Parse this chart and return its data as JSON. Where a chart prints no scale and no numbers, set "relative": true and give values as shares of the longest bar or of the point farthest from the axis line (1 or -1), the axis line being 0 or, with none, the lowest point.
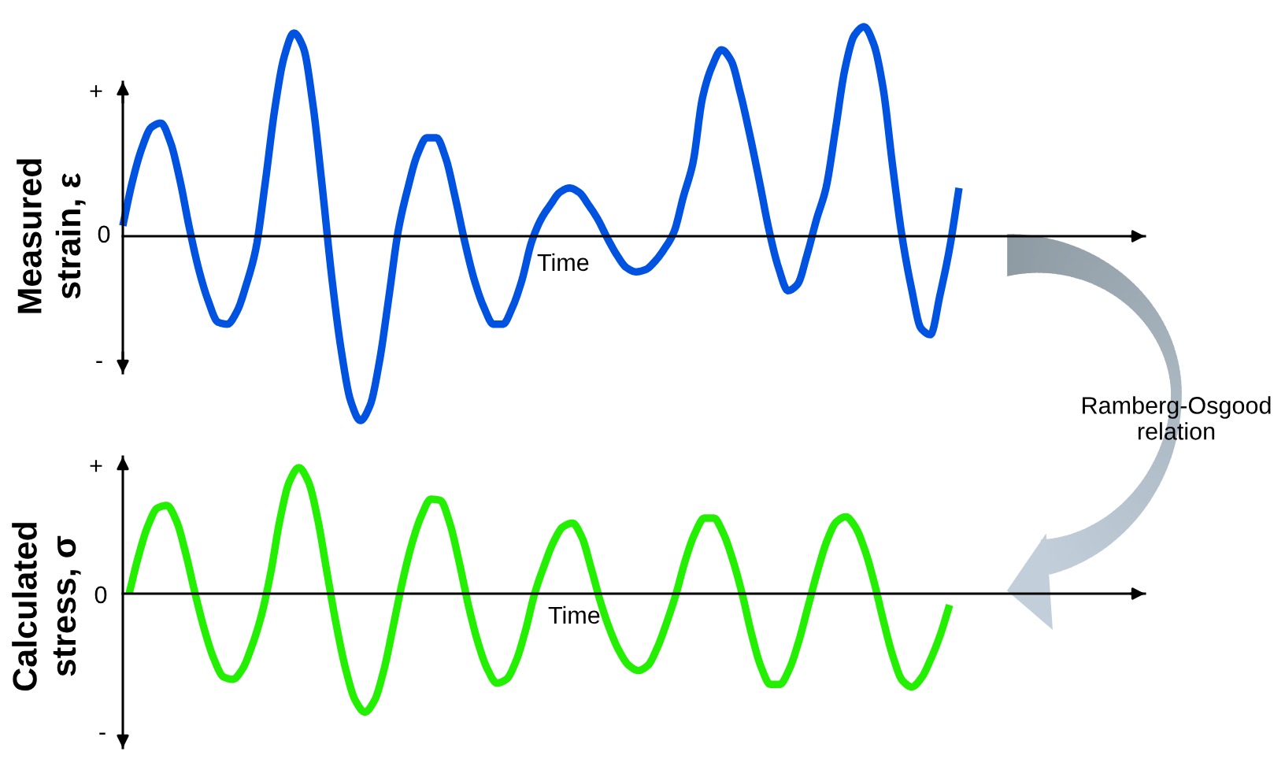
{
  "chart_data": [
    {
      "type": "line",
      "ylabel": "Measured\nstrain, ε",
      "xlabel": "Time",
      "relative": true,
      "annotations": [
        "+",
        "0",
        "-",
        "Ramberg-Osgood\nrelation"
      ],
      "categories": [
        null,
        null,
        null,
        null,
        null,
        null,
        null,
        null,
        null,
        null,
        null,
        null,
        null,
        null,
        null,
        null,
        null,
        null,
        null,
        null,
        null,
        null,
        null,
        null,
        null,
        null,
        null,
        null,
        null,
        null,
        null,
        null,
        null,
        null,
        null,
        null,
        null,
        null,
        null,
        null,
        null,
        null,
        null,
        null,
        null,
        null,
        null,
        null,
        null,
        null,
        null,
        null,
        null,
        null,
        null,
        null,
        null,
        null,
        null,
        null,
        null,
        null,
        null,
        null,
        null,
        null,
        null,
        null,
        null,
        null,
        null,
        null,
        null,
        null,
        null,
        null,
        null,
        null,
        null,
        null,
        null,
        null,
        null,
        null,
        null,
        null,
        null,
        null,
        null
      ],
      "series": [
        {
          "color": "#0052e0",
          "values": [
            0.05,
            0.26,
            0.42,
            0.52,
            0.54,
            0.45,
            0.27,
            0.04,
            -0.16,
            -0.31,
            -0.41,
            -0.42,
            -0.36,
            -0.23,
            -0.06,
            0.26,
            0.61,
            0.86,
            0.97,
            0.9,
            0.63,
            0.23,
            -0.2,
            -0.55,
            -0.79,
            -0.88,
            -0.81,
            -0.6,
            -0.29,
            0.03,
            0.23,
            0.39,
            0.47,
            0.47,
            0.37,
            0.18,
            -0.03,
            -0.21,
            -0.34,
            -0.42,
            -0.42,
            -0.34,
            -0.21,
            -0.03,
            0.08,
            0.15,
            0.21,
            0.23,
            0.21,
            0.15,
            0.08,
            -0.01,
            -0.09,
            -0.15,
            -0.17,
            -0.16,
            -0.12,
            -0.06,
            0.02,
            0.19,
            0.35,
            0.66,
            0.81,
            0.89,
            0.84,
            0.68,
            0.48,
            0.26,
            0.03,
            -0.15,
            -0.26,
            -0.23,
            -0.09,
            0.08,
            0.23,
            0.51,
            0.8,
            0.96,
            1.0,
            0.92,
            0.71,
            0.34,
            0.0,
            -0.25,
            -0.44,
            -0.47,
            -0.28,
            -0.06,
            0.23
          ]
        }
      ]
    },
    {
      "type": "line",
      "ylabel": "Calculated\nstress, σ",
      "xlabel": "Time",
      "relative": true,
      "annotations": [
        "+",
        "0",
        "-"
      ],
      "categories": [
        null,
        null,
        null,
        null,
        null,
        null,
        null,
        null,
        null,
        null,
        null,
        null,
        null,
        null,
        null,
        null,
        null,
        null,
        null,
        null,
        null,
        null,
        null,
        null,
        null,
        null,
        null,
        null,
        null,
        null,
        null,
        null,
        null,
        null,
        null,
        null,
        null,
        null,
        null,
        null,
        null,
        null,
        null,
        null,
        null,
        null,
        null,
        null,
        null,
        null,
        null,
        null,
        null,
        null,
        null,
        null,
        null,
        null,
        null,
        null,
        null,
        null,
        null,
        null,
        null,
        null,
        null,
        null,
        null,
        null,
        null,
        null,
        null,
        null,
        null,
        null,
        null,
        null,
        null,
        null,
        null,
        null,
        null,
        null,
        null,
        null,
        null,
        null
      ],
      "series": [
        {
          "color": "#22f000",
          "values": [
            0.0,
            0.3,
            0.54,
            0.68,
            0.7,
            0.58,
            0.32,
            0.0,
            -0.29,
            -0.52,
            -0.66,
            -0.68,
            -0.6,
            -0.42,
            -0.18,
            0.16,
            0.59,
            0.89,
            1.0,
            0.89,
            0.59,
            0.16,
            -0.26,
            -0.61,
            -0.85,
            -0.94,
            -0.85,
            -0.61,
            -0.26,
            0.1,
            0.4,
            0.62,
            0.75,
            0.74,
            0.56,
            0.25,
            -0.1,
            -0.39,
            -0.6,
            -0.71,
            -0.68,
            -0.54,
            -0.3,
            0.0,
            0.22,
            0.41,
            0.53,
            0.56,
            0.45,
            0.2,
            -0.07,
            -0.29,
            -0.46,
            -0.57,
            -0.61,
            -0.57,
            -0.43,
            -0.23,
            0.0,
            0.27,
            0.48,
            0.6,
            0.6,
            0.48,
            0.27,
            0.0,
            -0.32,
            -0.58,
            -0.72,
            -0.72,
            -0.6,
            -0.38,
            -0.1,
            0.18,
            0.42,
            0.57,
            0.61,
            0.53,
            0.35,
            0.09,
            -0.22,
            -0.5,
            -0.69,
            -0.74,
            -0.67,
            -0.52,
            -0.33,
            -0.09
          ]
        }
      ]
    }
  ]
}
